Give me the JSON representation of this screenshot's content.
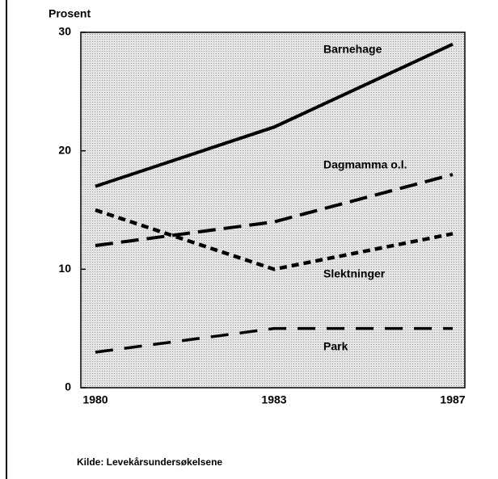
{
  "chart_data": {
    "type": "line",
    "y_label": "Prosent",
    "source": "Kilde: Levekårsundersøkelsene",
    "categories": [
      "1980",
      "1983",
      "1987"
    ],
    "series": [
      {
        "name": "Barnehage",
        "color": "#000000",
        "values": [
          17,
          22,
          29
        ]
      },
      {
        "name": "Dagmamma o.l.",
        "color": "#000000",
        "values": [
          12,
          14,
          18
        ]
      },
      {
        "name": "Slektninger",
        "color": "#000000",
        "values": [
          15,
          10,
          13
        ]
      },
      {
        "name": "Park",
        "color": "#000000",
        "values": [
          3,
          5,
          5
        ]
      }
    ],
    "ylim": [
      0,
      30
    ],
    "yticks": [
      0,
      10,
      20,
      30
    ],
    "grid": false
  }
}
